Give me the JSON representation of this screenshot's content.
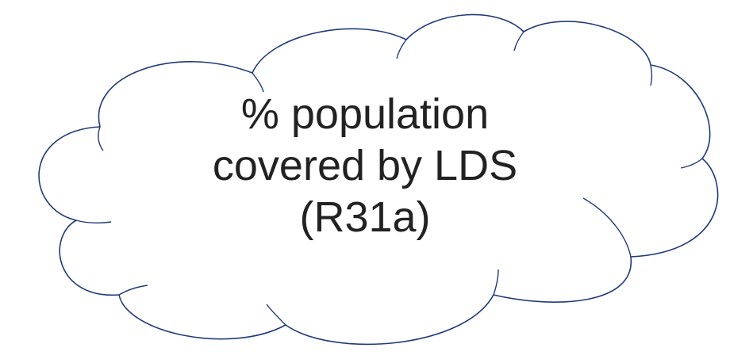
{
  "cloud": {
    "lines": [
      "% population",
      "covered by LDS",
      "(R31a)"
    ],
    "stroke_color": "#1f3a7a",
    "fill_color": "#ffffff",
    "text_color": "#222222"
  }
}
